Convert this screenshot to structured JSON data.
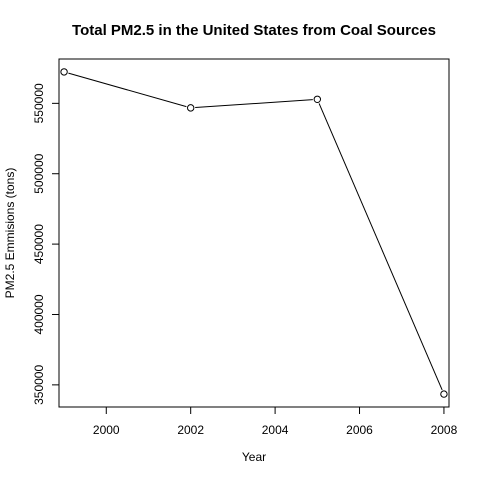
{
  "chart_data": {
    "type": "line",
    "title": "Total PM2.5 in the United States from Coal Sources",
    "xlabel": "Year",
    "ylabel": "PM2.5 Emmisions (tons)",
    "x": [
      1999,
      2002,
      2005,
      2008
    ],
    "series": [
      {
        "values": [
          572346,
          546789,
          552881,
          343432
        ]
      }
    ],
    "xticks": [
      2000,
      2002,
      2004,
      2006,
      2008
    ],
    "xtick_labels": [
      "2000",
      "2002",
      "2004",
      "2006",
      "2008"
    ],
    "yticks": [
      350000,
      400000,
      450000,
      500000,
      550000
    ],
    "ytick_labels": [
      "350000",
      "400000",
      "450000",
      "500000",
      "550000"
    ],
    "xlim": [
      1998.88,
      2008.12
    ],
    "ylim": [
      334275,
      581503
    ],
    "grid": false,
    "line_color": "#000000",
    "marker": "open-circle"
  }
}
